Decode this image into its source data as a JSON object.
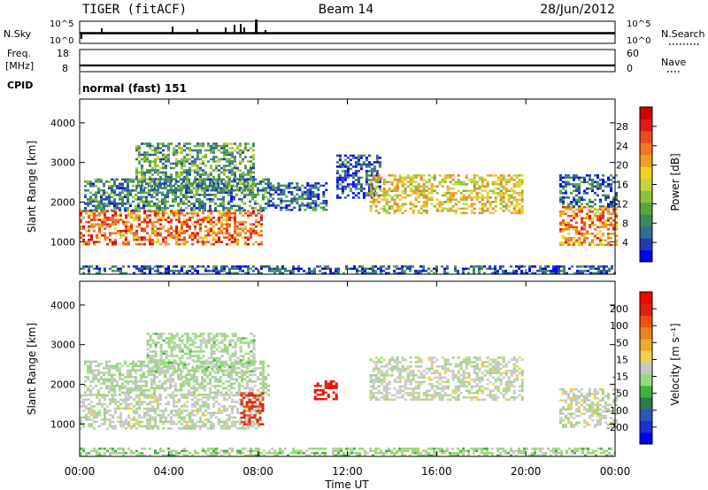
{
  "header": {
    "radar": "TIGER (fitACF)",
    "beam": "Beam 14",
    "date": "28/Jun/2012"
  },
  "parameter_panels": {
    "nsky_label": "N.Sky",
    "nsky_ticks": [
      "10^5",
      "10^0"
    ],
    "nsearch_label": "N.Search",
    "nsearch_ticks": [
      "10^5",
      "10^0"
    ],
    "freq_label_1": "Freq.",
    "freq_label_2": "[MHz]",
    "freq_ticks": [
      "18",
      "8"
    ],
    "nave_label": "Nave",
    "nave_ticks": [
      "60",
      "0"
    ],
    "cpid_label": "CPID",
    "cpid_value": "normal (fast) 151"
  },
  "power_colorbar": {
    "label": "Power [dB]",
    "ticks": [
      "28",
      "24",
      "20",
      "16",
      "12",
      "8",
      "4"
    ],
    "colors": [
      "#0000ff",
      "#1f3fb0",
      "#2e6f95",
      "#3c8a5a",
      "#59a83a",
      "#8cc23a",
      "#c8d23a",
      "#f0d020",
      "#f0a020",
      "#f07820",
      "#f04a20",
      "#e01818",
      "#d00000"
    ]
  },
  "velocity_colorbar": {
    "label": "Velocity [m s⁻¹]",
    "ticks": [
      "200",
      "100",
      "50",
      "15",
      "-15",
      "-50",
      "-100",
      "-200"
    ],
    "colors": [
      "#0000ff",
      "#1f2fd0",
      "#2b55c0",
      "#2d7a4a",
      "#3cb43c",
      "#9ad87a",
      "#c8c8c8",
      "#f0d050",
      "#f0a828",
      "#f08020",
      "#f05018",
      "#e02010",
      "#ff0000"
    ]
  },
  "x_axis": {
    "label": "Time UT",
    "ticks": [
      "00:00",
      "04:00",
      "08:00",
      "12:00",
      "16:00",
      "20:00",
      "00:00"
    ]
  },
  "chart_data": [
    {
      "type": "heatmap",
      "title": "",
      "xlabel": "",
      "ylabel": "Slant Range [km]",
      "x_range_hours": [
        0,
        24
      ],
      "ylim": [
        180,
        4600
      ],
      "yticks": [
        "1000",
        "2000",
        "3000",
        "4000"
      ],
      "colorbar": "Power [dB]",
      "color_range": [
        0,
        32
      ],
      "echo_bands": [
        {
          "t0": 0,
          "t1": 8.2,
          "r0": 950,
          "r1": 1800,
          "value": 24
        },
        {
          "t0": 0.2,
          "t1": 8.5,
          "r0": 1800,
          "r1": 2600,
          "value": 8
        },
        {
          "t0": 2.5,
          "t1": 7.8,
          "r0": 2300,
          "r1": 3500,
          "value": 10
        },
        {
          "t0": 8.5,
          "t1": 11,
          "r0": 1800,
          "r1": 2500,
          "value": 6
        },
        {
          "t0": 11.5,
          "t1": 13.5,
          "r0": 2100,
          "r1": 3200,
          "value": 5
        },
        {
          "t0": 13,
          "t1": 19.8,
          "r0": 1700,
          "r1": 2700,
          "value": 18
        },
        {
          "t0": 21.5,
          "t1": 24,
          "r0": 950,
          "r1": 1900,
          "value": 22
        },
        {
          "t0": 21.5,
          "t1": 24,
          "r0": 1900,
          "r1": 2700,
          "value": 6
        },
        {
          "t0": 0,
          "t1": 24,
          "r0": 200,
          "r1": 400,
          "value": 5
        }
      ]
    },
    {
      "type": "heatmap",
      "title": "",
      "xlabel": "Time UT",
      "ylabel": "Slant Range [km]",
      "x_range_hours": [
        0,
        24
      ],
      "ylim": [
        180,
        4600
      ],
      "yticks": [
        "1000",
        "2000",
        "3000",
        "4000"
      ],
      "colorbar": "Velocity [m s⁻¹]",
      "color_range": [
        -250,
        250
      ],
      "echo_bands": [
        {
          "t0": 0,
          "t1": 8.0,
          "r0": 900,
          "r1": 1750,
          "value": -5
        },
        {
          "t0": 0.2,
          "t1": 8.5,
          "r0": 1750,
          "r1": 2600,
          "value": -20
        },
        {
          "t0": 3,
          "t1": 7.8,
          "r0": 2300,
          "r1": 3300,
          "value": -30
        },
        {
          "t0": 7.2,
          "t1": 8.2,
          "r0": 1000,
          "r1": 1800,
          "value": 180
        },
        {
          "t0": 10.5,
          "t1": 11.5,
          "r0": 1600,
          "r1": 2100,
          "value": 220
        },
        {
          "t0": 13,
          "t1": 19.8,
          "r0": 1600,
          "r1": 2700,
          "value": -5
        },
        {
          "t0": 21.5,
          "t1": 24,
          "r0": 950,
          "r1": 1900,
          "value": 0
        },
        {
          "t0": 0,
          "t1": 24,
          "r0": 200,
          "r1": 400,
          "value": -40
        }
      ]
    }
  ]
}
